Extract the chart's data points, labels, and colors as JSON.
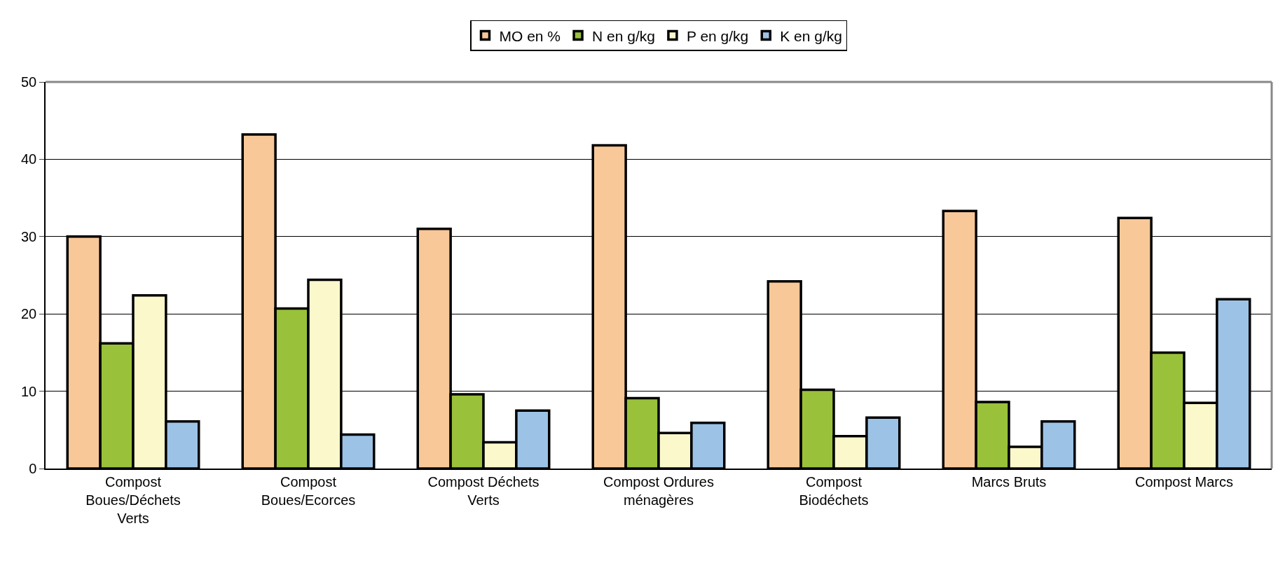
{
  "chart_data": {
    "type": "bar",
    "categories": [
      "Compost Boues/Déchets Verts",
      "Compost Boues/Ecorces",
      "Compost Déchets Verts",
      "Compost Ordures ménagères",
      "Compost Biodéchets",
      "Marcs Bruts",
      "Compost Marcs"
    ],
    "series": [
      {
        "name": "MO en %",
        "color": "#f8c898",
        "values": [
          30.0,
          43.2,
          31.0,
          41.8,
          24.2,
          33.3,
          32.4
        ]
      },
      {
        "name": "N en g/kg",
        "color": "#99c13a",
        "values": [
          16.2,
          20.7,
          9.6,
          9.1,
          10.2,
          8.6,
          15.0
        ]
      },
      {
        "name": "P en g/kg",
        "color": "#fbf8cc",
        "values": [
          22.4,
          24.4,
          3.4,
          4.6,
          4.2,
          2.8,
          8.5
        ]
      },
      {
        "name": "K en g/kg",
        "color": "#9cc2e6",
        "values": [
          6.1,
          4.4,
          7.5,
          5.9,
          6.6,
          6.1,
          21.9
        ]
      }
    ],
    "ylim": [
      0,
      50
    ],
    "yticks": [
      0,
      10,
      20,
      30,
      40,
      50
    ],
    "grid": "y",
    "legend": "top"
  }
}
